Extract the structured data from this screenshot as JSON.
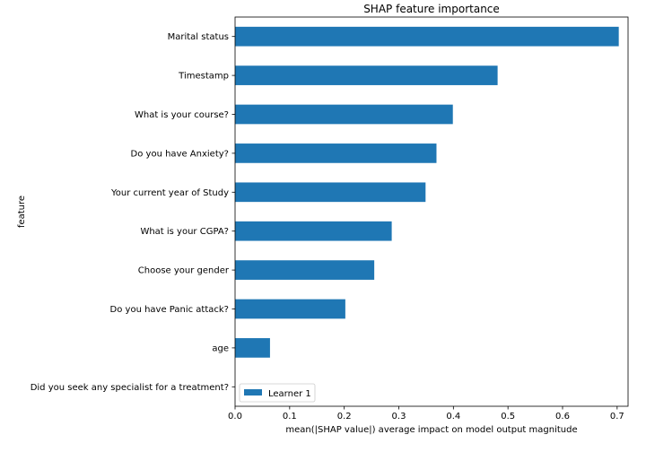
{
  "chart_data": {
    "type": "bar",
    "orientation": "horizontal",
    "title": "SHAP feature importance",
    "xlabel": "mean(|SHAP value|) average impact on model output magnitude",
    "ylabel": "feature",
    "categories": [
      "Marital status",
      "Timestamp",
      "What is your course?",
      "Do you have Anxiety?",
      "Your current year of Study",
      "What is your CGPA?",
      "Choose your gender",
      "Do you have Panic attack?",
      "age",
      "Did you seek any specialist for a treatment?"
    ],
    "series": [
      {
        "name": "Learner 1",
        "color": "#1f77b4",
        "values": [
          0.703,
          0.481,
          0.399,
          0.369,
          0.349,
          0.287,
          0.255,
          0.202,
          0.064,
          0.0
        ]
      }
    ],
    "xlim": [
      0,
      0.72
    ],
    "xticks": [
      "0.0",
      "0.1",
      "0.2",
      "0.3",
      "0.4",
      "0.5",
      "0.6",
      "0.7"
    ],
    "grid": false,
    "legend_position": "lower-left"
  }
}
